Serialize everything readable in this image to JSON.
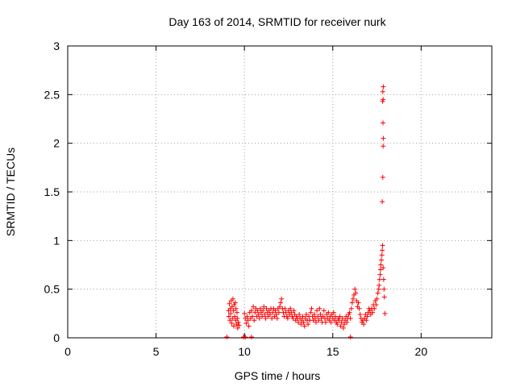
{
  "chart_data": {
    "type": "scatter",
    "title": "Day 163 of 2014, SRMTID for receiver nurk",
    "xlabel": "GPS time / hours",
    "ylabel": "SRMTID / TECUs",
    "xlim": [
      0,
      24
    ],
    "ylim": [
      0,
      3
    ],
    "xticks": [
      "0",
      "5",
      "10",
      "15",
      "20"
    ],
    "xtick_values": [
      0,
      5,
      10,
      15,
      20
    ],
    "yticks": [
      "0",
      "0.5",
      "1",
      "1.5",
      "2",
      "2.5",
      "3"
    ],
    "ytick_values": [
      0,
      0.5,
      1,
      1.5,
      2,
      2.5,
      3
    ],
    "grid": true,
    "marker": "+",
    "color": "#ff0000",
    "series": [
      {
        "name": "SRMTID",
        "points": [
          [
            9.0,
            0.005
          ],
          [
            9.95,
            0.005
          ],
          [
            10.05,
            0.005
          ],
          [
            10.4,
            0.005
          ],
          [
            16.0,
            0.005
          ],
          [
            9.1,
            0.28
          ],
          [
            9.12,
            0.22
          ],
          [
            9.15,
            0.35
          ],
          [
            9.18,
            0.18
          ],
          [
            9.2,
            0.3
          ],
          [
            9.22,
            0.25
          ],
          [
            9.25,
            0.38
          ],
          [
            9.28,
            0.15
          ],
          [
            9.3,
            0.32
          ],
          [
            9.32,
            0.2
          ],
          [
            9.35,
            0.4
          ],
          [
            9.38,
            0.28
          ],
          [
            9.4,
            0.12
          ],
          [
            9.42,
            0.34
          ],
          [
            9.45,
            0.22
          ],
          [
            9.48,
            0.36
          ],
          [
            9.5,
            0.18
          ],
          [
            9.52,
            0.3
          ],
          [
            9.55,
            0.14
          ],
          [
            9.58,
            0.26
          ],
          [
            9.6,
            0.2
          ],
          [
            9.62,
            0.1
          ],
          [
            9.65,
            0.16
          ],
          [
            9.7,
            0.13
          ],
          [
            10.0,
            0.25
          ],
          [
            10.05,
            0.2
          ],
          [
            10.1,
            0.15
          ],
          [
            10.15,
            0.22
          ],
          [
            10.2,
            0.18
          ],
          [
            10.25,
            0.12
          ],
          [
            10.3,
            0.26
          ],
          [
            10.35,
            0.2
          ],
          [
            10.4,
            0.28
          ],
          [
            10.45,
            0.22
          ],
          [
            10.5,
            0.32
          ],
          [
            10.55,
            0.18
          ],
          [
            10.6,
            0.26
          ],
          [
            10.65,
            0.3
          ],
          [
            10.7,
            0.22
          ],
          [
            10.75,
            0.28
          ],
          [
            10.8,
            0.24
          ],
          [
            10.85,
            0.2
          ],
          [
            10.9,
            0.3
          ],
          [
            10.95,
            0.26
          ],
          [
            11.0,
            0.22
          ],
          [
            11.05,
            0.28
          ],
          [
            11.1,
            0.32
          ],
          [
            11.15,
            0.24
          ],
          [
            11.2,
            0.2
          ],
          [
            11.25,
            0.3
          ],
          [
            11.3,
            0.26
          ],
          [
            11.35,
            0.22
          ],
          [
            11.4,
            0.28
          ],
          [
            11.45,
            0.24
          ],
          [
            11.5,
            0.3
          ],
          [
            11.55,
            0.2
          ],
          [
            11.6,
            0.26
          ],
          [
            11.65,
            0.3
          ],
          [
            11.7,
            0.22
          ],
          [
            11.75,
            0.28
          ],
          [
            11.8,
            0.24
          ],
          [
            11.85,
            0.2
          ],
          [
            11.9,
            0.3
          ],
          [
            11.95,
            0.26
          ],
          [
            12.0,
            0.32
          ],
          [
            12.05,
            0.36
          ],
          [
            12.1,
            0.4
          ],
          [
            12.15,
            0.3
          ],
          [
            12.2,
            0.26
          ],
          [
            12.25,
            0.22
          ],
          [
            12.3,
            0.3
          ],
          [
            12.35,
            0.26
          ],
          [
            12.4,
            0.22
          ],
          [
            12.45,
            0.2
          ],
          [
            12.5,
            0.28
          ],
          [
            12.55,
            0.24
          ],
          [
            12.6,
            0.3
          ],
          [
            12.65,
            0.26
          ],
          [
            12.7,
            0.22
          ],
          [
            12.75,
            0.2
          ],
          [
            12.8,
            0.28
          ],
          [
            12.85,
            0.24
          ],
          [
            12.9,
            0.18
          ],
          [
            12.95,
            0.22
          ],
          [
            13.0,
            0.2
          ],
          [
            13.05,
            0.16
          ],
          [
            13.1,
            0.24
          ],
          [
            13.15,
            0.2
          ],
          [
            13.2,
            0.14
          ],
          [
            13.25,
            0.18
          ],
          [
            13.3,
            0.22
          ],
          [
            13.35,
            0.16
          ],
          [
            13.4,
            0.12
          ],
          [
            13.45,
            0.2
          ],
          [
            13.5,
            0.24
          ],
          [
            13.55,
            0.18
          ],
          [
            13.6,
            0.14
          ],
          [
            13.65,
            0.22
          ],
          [
            13.7,
            0.18
          ],
          [
            13.75,
            0.26
          ],
          [
            13.8,
            0.3
          ],
          [
            13.85,
            0.22
          ],
          [
            13.9,
            0.18
          ],
          [
            13.95,
            0.24
          ],
          [
            14.0,
            0.2
          ],
          [
            14.05,
            0.16
          ],
          [
            14.1,
            0.28
          ],
          [
            14.15,
            0.22
          ],
          [
            14.2,
            0.18
          ],
          [
            14.25,
            0.3
          ],
          [
            14.3,
            0.24
          ],
          [
            14.35,
            0.2
          ],
          [
            14.4,
            0.16
          ],
          [
            14.45,
            0.22
          ],
          [
            14.5,
            0.28
          ],
          [
            14.55,
            0.2
          ],
          [
            14.6,
            0.16
          ],
          [
            14.65,
            0.24
          ],
          [
            14.7,
            0.2
          ],
          [
            14.75,
            0.26
          ],
          [
            14.8,
            0.18
          ],
          [
            14.85,
            0.22
          ],
          [
            14.9,
            0.16
          ],
          [
            14.95,
            0.24
          ],
          [
            15.0,
            0.2
          ],
          [
            15.05,
            0.26
          ],
          [
            15.1,
            0.18
          ],
          [
            15.15,
            0.22
          ],
          [
            15.2,
            0.16
          ],
          [
            15.25,
            0.14
          ],
          [
            15.3,
            0.2
          ],
          [
            15.35,
            0.18
          ],
          [
            15.4,
            0.22
          ],
          [
            15.45,
            0.12
          ],
          [
            15.5,
            0.16
          ],
          [
            15.55,
            0.2
          ],
          [
            15.6,
            0.1
          ],
          [
            15.65,
            0.14
          ],
          [
            15.7,
            0.18
          ],
          [
            15.75,
            0.22
          ],
          [
            15.8,
            0.16
          ],
          [
            15.85,
            0.2
          ],
          [
            15.9,
            0.24
          ],
          [
            15.95,
            0.26
          ],
          [
            16.0,
            0.2
          ],
          [
            16.05,
            0.3
          ],
          [
            16.1,
            0.36
          ],
          [
            16.15,
            0.4
          ],
          [
            16.2,
            0.44
          ],
          [
            16.25,
            0.5
          ],
          [
            16.3,
            0.46
          ],
          [
            16.35,
            0.38
          ],
          [
            16.4,
            0.32
          ],
          [
            16.45,
            0.36
          ],
          [
            16.5,
            0.3
          ],
          [
            16.55,
            0.24
          ],
          [
            16.6,
            0.2
          ],
          [
            16.65,
            0.16
          ],
          [
            16.7,
            0.18
          ],
          [
            16.75,
            0.14
          ],
          [
            16.8,
            0.2
          ],
          [
            16.85,
            0.24
          ],
          [
            16.9,
            0.18
          ],
          [
            16.95,
            0.22
          ],
          [
            17.0,
            0.26
          ],
          [
            17.05,
            0.3
          ],
          [
            17.1,
            0.28
          ],
          [
            17.15,
            0.24
          ],
          [
            17.2,
            0.3
          ],
          [
            17.25,
            0.26
          ],
          [
            17.3,
            0.34
          ],
          [
            17.35,
            0.3
          ],
          [
            17.4,
            0.38
          ],
          [
            17.45,
            0.34
          ],
          [
            17.5,
            0.4
          ],
          [
            17.55,
            0.46
          ],
          [
            17.6,
            0.5
          ],
          [
            17.62,
            0.54
          ],
          [
            17.65,
            0.6
          ],
          [
            17.68,
            0.65
          ],
          [
            17.7,
            0.7
          ],
          [
            17.72,
            0.75
          ],
          [
            17.75,
            0.8
          ],
          [
            17.78,
            0.85
          ],
          [
            17.8,
            0.9
          ],
          [
            17.82,
            0.95
          ],
          [
            17.85,
            0.72
          ],
          [
            17.88,
            0.6
          ],
          [
            17.9,
            0.5
          ],
          [
            17.92,
            0.42
          ],
          [
            17.95,
            0.25
          ],
          [
            17.8,
            1.4
          ],
          [
            17.83,
            1.65
          ],
          [
            17.85,
            1.97
          ],
          [
            17.86,
            2.05
          ],
          [
            17.84,
            2.21
          ],
          [
            17.82,
            2.43
          ],
          [
            17.85,
            2.45
          ],
          [
            17.83,
            2.53
          ],
          [
            17.86,
            2.58
          ]
        ]
      }
    ]
  }
}
